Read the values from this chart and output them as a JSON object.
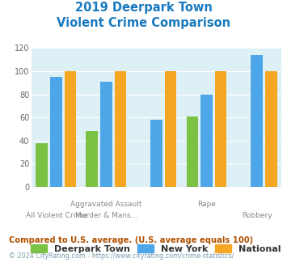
{
  "title_line1": "2019 Deerpark Town",
  "title_line2": "Violent Crime Comparison",
  "title_color": "#1a7abf",
  "groups": [
    {
      "deerpark": 38,
      "ny": 95,
      "national": 100
    },
    {
      "deerpark": 48,
      "ny": 91,
      "national": 100
    },
    {
      "deerpark": 0,
      "ny": 58,
      "national": 100
    },
    {
      "deerpark": 61,
      "ny": 80,
      "national": 100
    },
    {
      "deerpark": 0,
      "ny": 114,
      "national": 100
    }
  ],
  "xlabels_top": [
    "",
    "Aggravated Assault",
    "",
    "Rape",
    ""
  ],
  "xlabels_bot": [
    "All Violent Crime",
    "Murder & Mans...",
    "",
    "",
    "Robbery"
  ],
  "color_deerpark": "#7bc143",
  "color_ny": "#4da6e8",
  "color_national": "#f5a623",
  "ylim": [
    0,
    120
  ],
  "yticks": [
    0,
    20,
    40,
    60,
    80,
    100,
    120
  ],
  "background_color": "#ddf0f5",
  "legend_labels": [
    "Deerpark Town",
    "New York",
    "National"
  ],
  "footnote1": "Compared to U.S. average. (U.S. average equals 100)",
  "footnote2": "© 2024 CityRating.com - https://www.cityrating.com/crime-statistics/",
  "footnote1_color": "#b05000",
  "footnote2_color": "#7a9aaa"
}
